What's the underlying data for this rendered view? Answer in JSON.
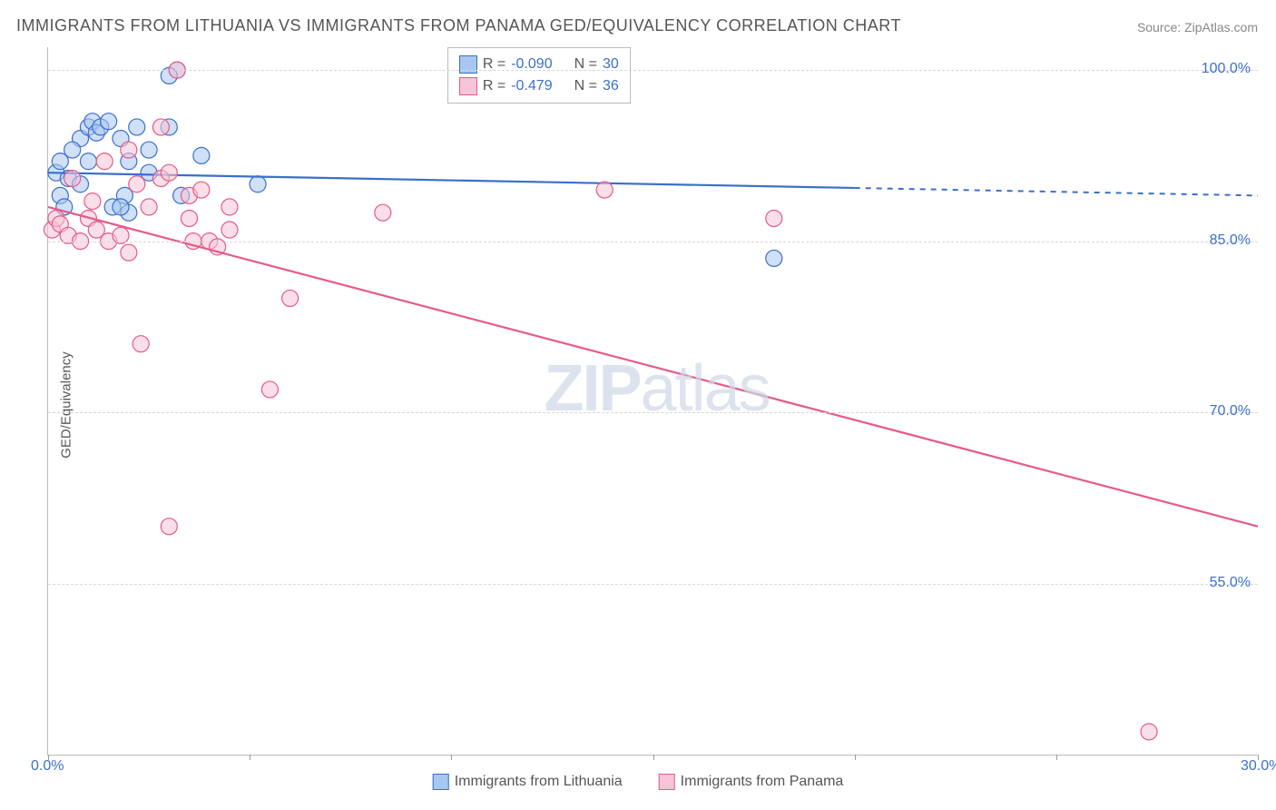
{
  "title": "IMMIGRANTS FROM LITHUANIA VS IMMIGRANTS FROM PANAMA GED/EQUIVALENCY CORRELATION CHART",
  "source": "Source: ZipAtlas.com",
  "ylabel": "GED/Equivalency",
  "watermark": {
    "prefix": "ZIP",
    "suffix": "atlas"
  },
  "chart": {
    "type": "scatter",
    "background": "#ffffff",
    "grid_color": "#d8d8d8",
    "axis_color": "#bbbbbb",
    "font_color_axis": "#3b6fc9",
    "xlim": [
      0,
      30
    ],
    "ylim": [
      40,
      102
    ],
    "yticks": [
      55.0,
      70.0,
      85.0,
      100.0
    ],
    "ytick_labels": [
      "55.0%",
      "70.0%",
      "85.0%",
      "100.0%"
    ],
    "xticks": [
      0,
      5,
      10,
      15,
      20,
      25,
      30
    ],
    "xtick_labels": [
      "0.0%",
      "",
      "",
      "",
      "",
      "",
      "30.0%"
    ],
    "series": [
      {
        "name": "Immigrants from Lithuania",
        "fill": "#a8c6f0",
        "stroke": "#3b6fc9",
        "r_value": "-0.090",
        "n_value": "30",
        "trend": {
          "x1": 0,
          "y1": 91,
          "x2": 30,
          "y2": 89,
          "solid_until_x": 20
        },
        "points": [
          [
            0.2,
            91
          ],
          [
            0.5,
            90.5
          ],
          [
            0.3,
            92
          ],
          [
            0.8,
            94
          ],
          [
            1.0,
            95
          ],
          [
            1.1,
            95.5
          ],
          [
            0.6,
            93
          ],
          [
            1.2,
            94.5
          ],
          [
            1.3,
            95
          ],
          [
            1.5,
            95.5
          ],
          [
            1.8,
            94
          ],
          [
            2.0,
            92
          ],
          [
            2.2,
            95
          ],
          [
            2.5,
            93
          ],
          [
            3.0,
            95
          ],
          [
            3.2,
            100
          ],
          [
            5.2,
            90
          ],
          [
            3.0,
            99.5
          ],
          [
            0.3,
            89
          ],
          [
            0.8,
            90
          ],
          [
            1.6,
            88
          ],
          [
            2.0,
            87.5
          ],
          [
            2.5,
            91
          ],
          [
            1.9,
            89
          ],
          [
            3.3,
            89
          ],
          [
            3.8,
            92.5
          ],
          [
            1.0,
            92
          ],
          [
            18.0,
            83.5
          ],
          [
            0.4,
            88
          ],
          [
            1.8,
            88
          ]
        ]
      },
      {
        "name": "Immigrants from Panama",
        "fill": "#f5c4d6",
        "stroke": "#e55a8a",
        "r_value": "-0.479",
        "n_value": "36",
        "trend": {
          "x1": 0,
          "y1": 88,
          "x2": 30,
          "y2": 60,
          "solid_until_x": 30
        },
        "points": [
          [
            0.1,
            86
          ],
          [
            0.2,
            87
          ],
          [
            0.3,
            86.5
          ],
          [
            0.5,
            85.5
          ],
          [
            0.8,
            85
          ],
          [
            1.0,
            87
          ],
          [
            1.2,
            86
          ],
          [
            1.5,
            85
          ],
          [
            1.8,
            85.5
          ],
          [
            2.0,
            84
          ],
          [
            2.2,
            90
          ],
          [
            2.5,
            88
          ],
          [
            2.8,
            90.5
          ],
          [
            3.0,
            91
          ],
          [
            3.2,
            100
          ],
          [
            3.5,
            89
          ],
          [
            3.8,
            89.5
          ],
          [
            4.0,
            85
          ],
          [
            4.2,
            84.5
          ],
          [
            4.5,
            86
          ],
          [
            2.3,
            76
          ],
          [
            3.0,
            60
          ],
          [
            5.5,
            72
          ],
          [
            3.5,
            87
          ],
          [
            4.5,
            88
          ],
          [
            8.3,
            87.5
          ],
          [
            6.0,
            80
          ],
          [
            2.8,
            95
          ],
          [
            13.8,
            89.5
          ],
          [
            18.0,
            87
          ],
          [
            27.3,
            42
          ],
          [
            0.6,
            90.5
          ],
          [
            1.4,
            92
          ],
          [
            2.0,
            93
          ],
          [
            1.1,
            88.5
          ],
          [
            3.6,
            85
          ]
        ]
      }
    ]
  },
  "legend_top": {
    "label_r": "R =",
    "label_n": "N ="
  }
}
